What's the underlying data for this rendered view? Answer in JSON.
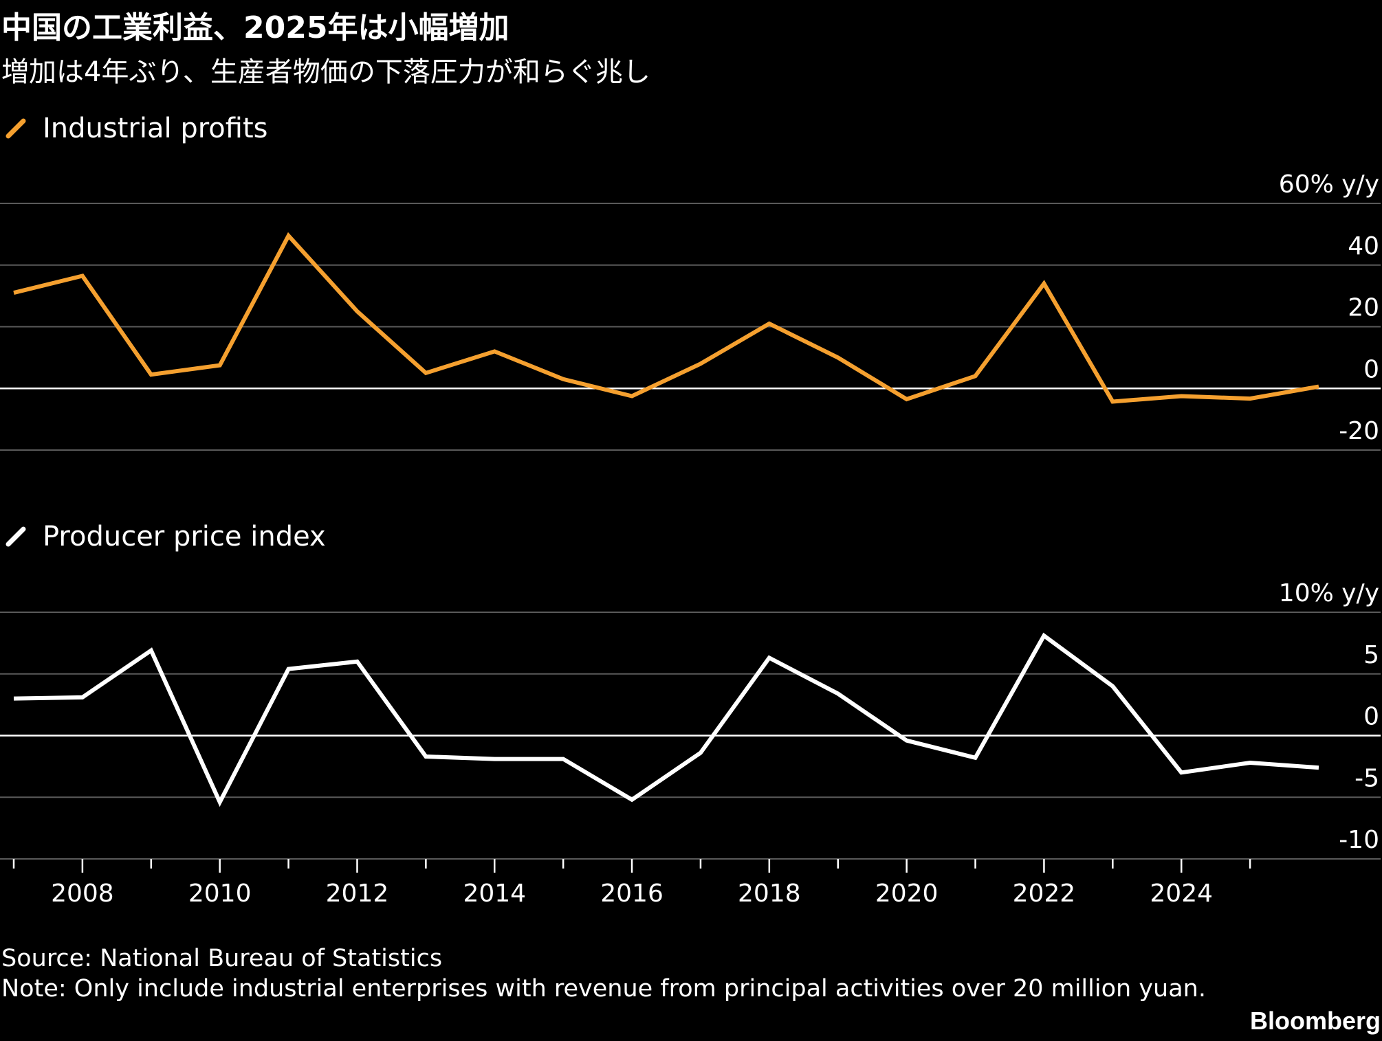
{
  "title": "中国の工業利益、2025年は小幅増加",
  "subtitle": "増加は4年ぶり、生産者物価の下落圧力が和らぐ兆し",
  "source": "Source: National Bureau of Statistics",
  "note": "Note: Only include industrial enterprises with revenue from principal activities over 20 million yuan.",
  "brand": "Bloomberg",
  "colors": {
    "background": "#000000",
    "profits_line": "#f5a02f",
    "ppi_line": "#ffffff",
    "grid": "#5a5a5a",
    "zero_line": "#ffffff"
  },
  "chart_data": [
    {
      "type": "line",
      "legend": "Industrial profits",
      "unit_label": "60% y/y",
      "yticks": [
        "40",
        "20",
        "0",
        "-20"
      ],
      "ylim": [
        -20,
        60
      ],
      "x": [
        2007,
        2008,
        2009,
        2010,
        2011,
        2012,
        2013,
        2014,
        2015,
        2016,
        2017,
        2018,
        2019,
        2020,
        2021,
        2022,
        2023,
        2024,
        2025,
        2026
      ],
      "series": [
        {
          "name": "Industrial profits",
          "color": "#f5a02f",
          "values": [
            31,
            36.5,
            4.5,
            7.5,
            49.5,
            25,
            5,
            12,
            3,
            -2.5,
            8,
            21,
            10,
            -3.5,
            4,
            34,
            -4.3,
            -2.5,
            -3.3,
            0.6
          ]
        }
      ]
    },
    {
      "type": "line",
      "legend": "Producer price index",
      "unit_label": "10% y/y",
      "yticks": [
        "5",
        "0",
        "-5",
        "-10"
      ],
      "ylim": [
        -10,
        10
      ],
      "x": [
        2007,
        2008,
        2009,
        2010,
        2011,
        2012,
        2013,
        2014,
        2015,
        2016,
        2017,
        2018,
        2019,
        2020,
        2021,
        2022,
        2023,
        2024,
        2025,
        2026
      ],
      "xticks": [
        "2008",
        "2010",
        "2012",
        "2014",
        "2016",
        "2018",
        "2020",
        "2022",
        "2024"
      ],
      "series": [
        {
          "name": "Producer price index",
          "color": "#ffffff",
          "values": [
            3,
            3.1,
            6.9,
            -5.4,
            5.4,
            6,
            -1.7,
            -1.9,
            -1.9,
            -5.2,
            -1.4,
            6.3,
            3.4,
            -0.4,
            -1.8,
            8.1,
            4,
            -3,
            -2.2,
            -2.6
          ]
        }
      ]
    }
  ]
}
